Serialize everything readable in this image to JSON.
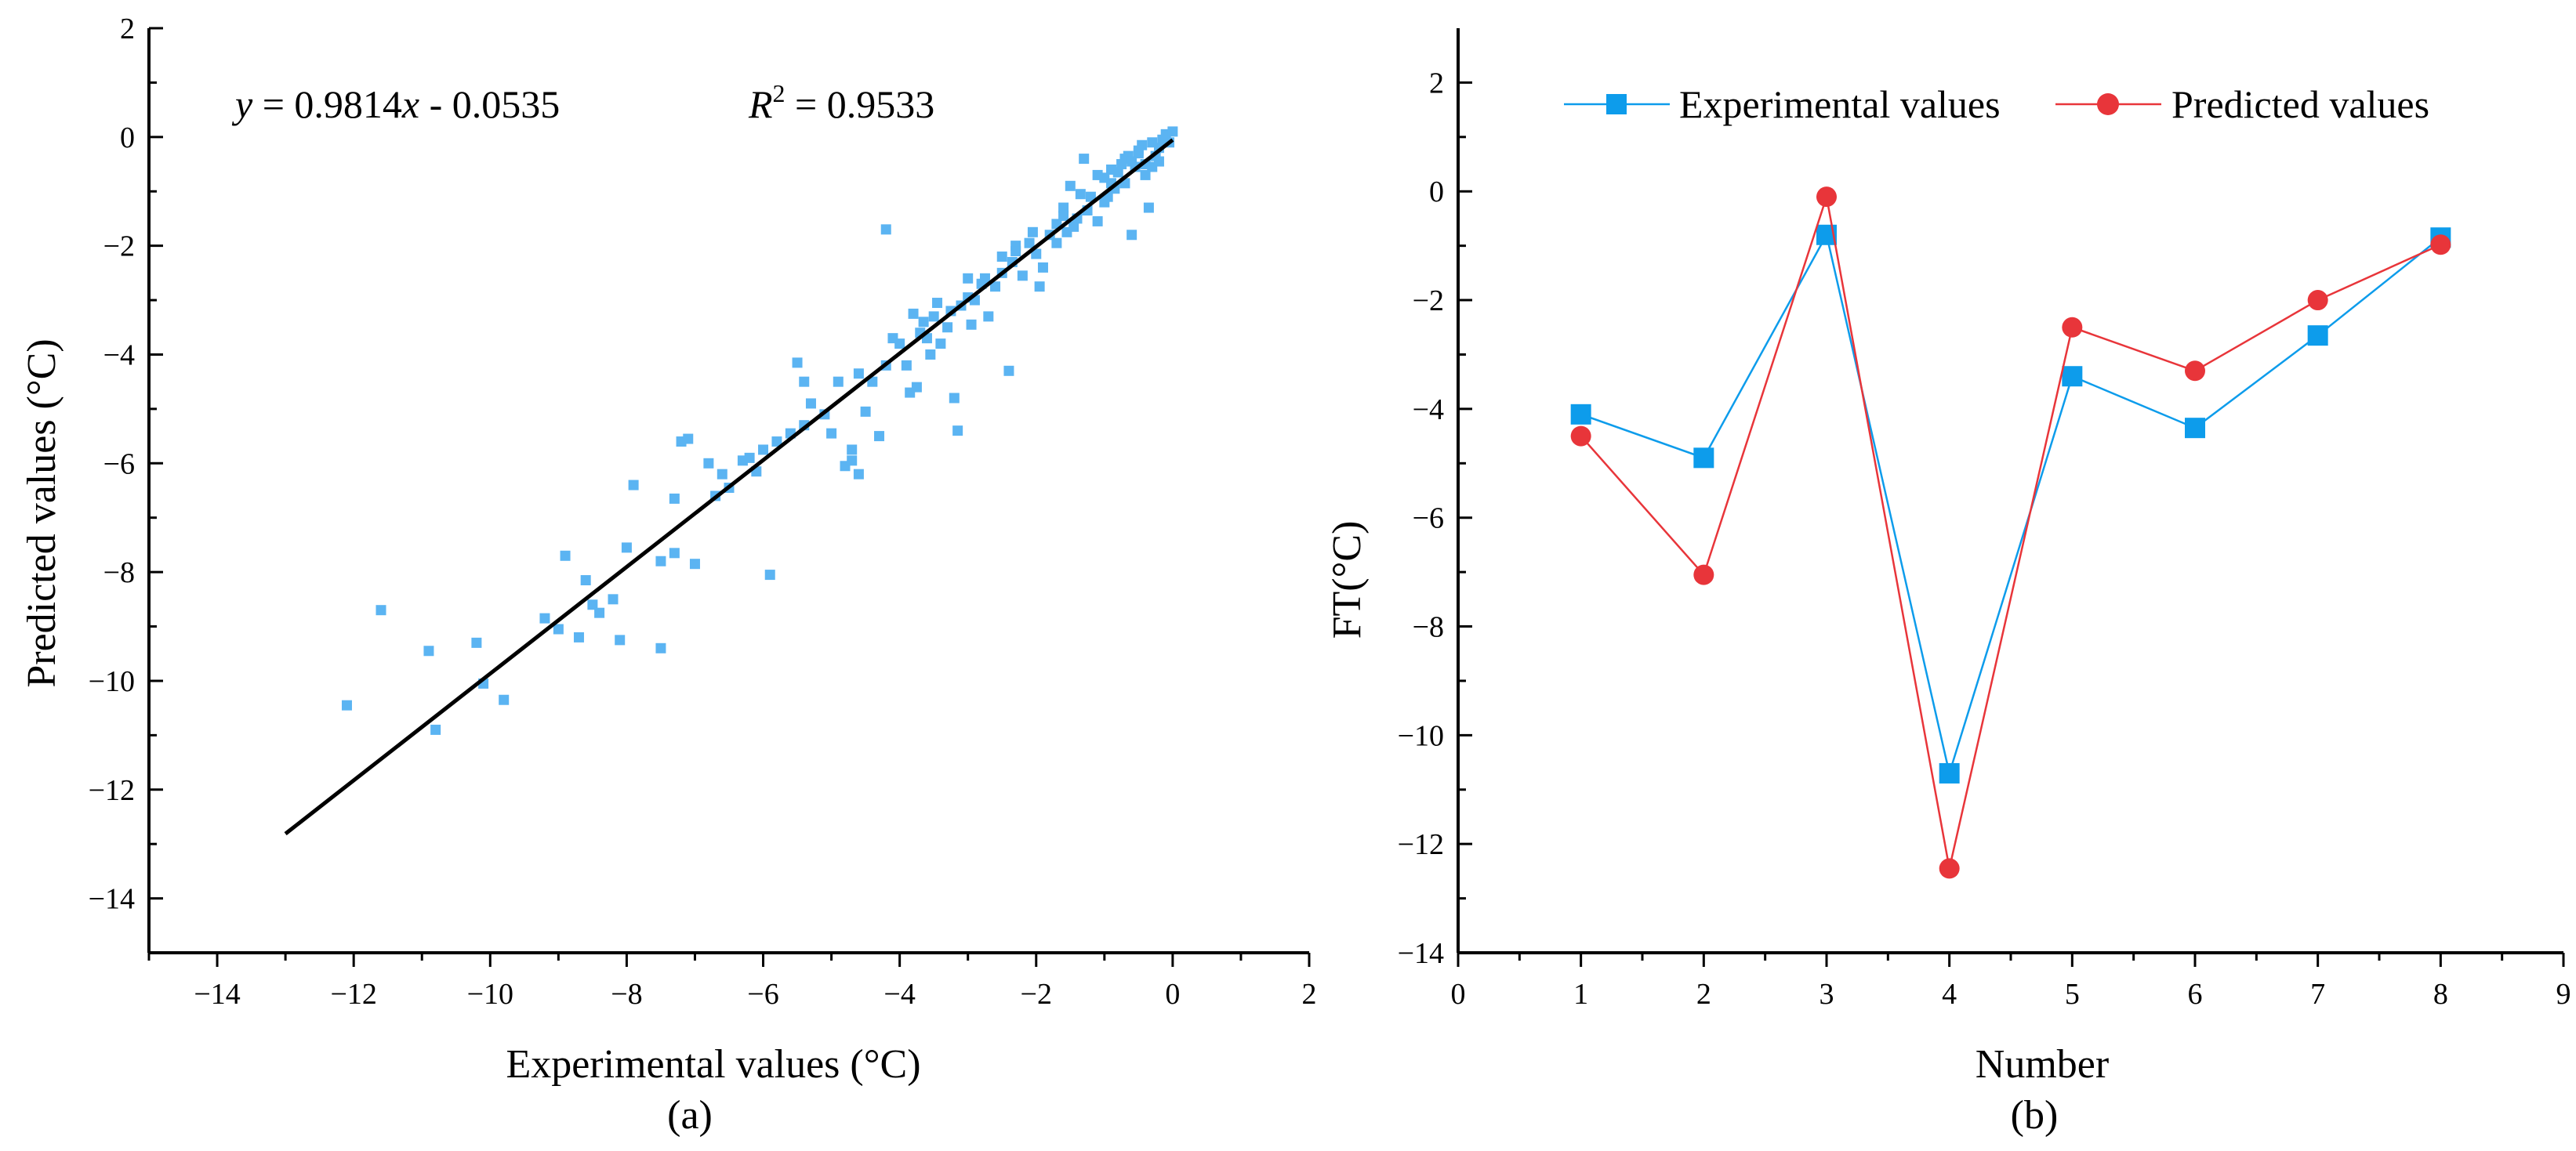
{
  "chart_data": [
    {
      "type": "scatter",
      "panel_label": "(a)",
      "title": "",
      "xlabel": "Experimental values (°C)",
      "ylabel": "Predicted values (°C)",
      "xlim": [
        -15,
        2
      ],
      "ylim": [
        -15,
        2
      ],
      "xticks": [
        -14,
        -12,
        -10,
        -8,
        -6,
        -4,
        -2,
        0,
        2
      ],
      "yticks": [
        -14,
        -12,
        -10,
        -8,
        -6,
        -4,
        -2,
        0,
        2
      ],
      "grid": false,
      "fit": {
        "slope": 0.9814,
        "intercept": -0.0535,
        "r2": 0.9533,
        "x_range": [
          -13,
          0
        ]
      },
      "annotations": {
        "equation": "y = 0.9814x - 0.0535",
        "r2_text": "R2 = 0.9533"
      },
      "marker_color": "#5bb4f2",
      "line_color": "#000000",
      "points": [
        [
          -12.1,
          -10.45
        ],
        [
          -11.6,
          -8.7
        ],
        [
          -10.9,
          -9.45
        ],
        [
          -10.8,
          -10.9
        ],
        [
          -10.2,
          -9.3
        ],
        [
          -10.1,
          -10.05
        ],
        [
          -9.8,
          -10.35
        ],
        [
          -9.2,
          -8.85
        ],
        [
          -9.0,
          -9.05
        ],
        [
          -8.9,
          -7.7
        ],
        [
          -8.7,
          -9.2
        ],
        [
          -8.6,
          -8.15
        ],
        [
          -8.5,
          -8.6
        ],
        [
          -8.4,
          -8.75
        ],
        [
          -8.2,
          -8.5
        ],
        [
          -8.1,
          -9.25
        ],
        [
          -8.0,
          -7.55
        ],
        [
          -7.9,
          -6.4
        ],
        [
          -7.5,
          -7.8
        ],
        [
          -7.5,
          -9.4
        ],
        [
          -7.3,
          -7.65
        ],
        [
          -7.3,
          -6.65
        ],
        [
          -7.2,
          -5.6
        ],
        [
          -7.1,
          -5.55
        ],
        [
          -7.0,
          -7.85
        ],
        [
          -6.8,
          -6.0
        ],
        [
          -6.7,
          -6.6
        ],
        [
          -6.6,
          -6.2
        ],
        [
          -6.5,
          -6.45
        ],
        [
          -6.3,
          -5.95
        ],
        [
          -6.2,
          -5.9
        ],
        [
          -6.1,
          -6.15
        ],
        [
          -6.0,
          -5.75
        ],
        [
          -5.9,
          -8.05
        ],
        [
          -5.8,
          -5.6
        ],
        [
          -5.6,
          -5.45
        ],
        [
          -5.5,
          -4.15
        ],
        [
          -5.4,
          -4.5
        ],
        [
          -5.4,
          -5.3
        ],
        [
          -5.3,
          -4.9
        ],
        [
          -5.1,
          -5.1
        ],
        [
          -5.0,
          -5.45
        ],
        [
          -4.9,
          -4.5
        ],
        [
          -4.8,
          -6.05
        ],
        [
          -4.7,
          -5.95
        ],
        [
          -4.7,
          -5.75
        ],
        [
          -4.6,
          -6.2
        ],
        [
          -4.6,
          -4.35
        ],
        [
          -4.5,
          -5.05
        ],
        [
          -4.4,
          -4.5
        ],
        [
          -4.3,
          -5.5
        ],
        [
          -4.2,
          -4.2
        ],
        [
          -4.2,
          -1.7
        ],
        [
          -4.0,
          -3.8
        ],
        [
          -3.9,
          -4.2
        ],
        [
          -3.85,
          -4.7
        ],
        [
          -3.8,
          -3.25
        ],
        [
          -3.75,
          -4.6
        ],
        [
          -3.7,
          -3.6
        ],
        [
          -3.6,
          -3.7
        ],
        [
          -3.55,
          -4.0
        ],
        [
          -3.5,
          -3.3
        ],
        [
          -3.4,
          -3.8
        ],
        [
          -3.3,
          -3.5
        ],
        [
          -3.2,
          -4.8
        ],
        [
          -3.15,
          -5.4
        ],
        [
          -3.1,
          -3.1
        ],
        [
          -3.0,
          -2.95
        ],
        [
          -2.95,
          -3.45
        ],
        [
          -2.9,
          -3.0
        ],
        [
          -2.8,
          -2.7
        ],
        [
          -2.7,
          -3.3
        ],
        [
          -2.6,
          -2.75
        ],
        [
          -2.5,
          -2.5
        ],
        [
          -2.4,
          -4.3
        ],
        [
          -2.35,
          -2.3
        ],
        [
          -2.3,
          -2.0
        ],
        [
          -2.2,
          -2.55
        ],
        [
          -2.1,
          -1.95
        ],
        [
          -2.0,
          -2.15
        ],
        [
          -1.95,
          -2.75
        ],
        [
          -1.9,
          -2.4
        ],
        [
          -1.8,
          -1.8
        ],
        [
          -1.7,
          -1.95
        ],
        [
          -1.6,
          -1.3
        ],
        [
          -1.55,
          -1.75
        ],
        [
          -1.5,
          -0.9
        ],
        [
          -1.4,
          -1.5
        ],
        [
          -1.3,
          -0.4
        ],
        [
          -1.25,
          -1.35
        ],
        [
          -1.2,
          -1.1
        ],
        [
          -1.1,
          -1.55
        ],
        [
          -1.0,
          -0.75
        ],
        [
          -0.95,
          -1.1
        ],
        [
          -0.9,
          -0.6
        ],
        [
          -0.85,
          -0.95
        ],
        [
          -0.8,
          -0.65
        ],
        [
          -0.75,
          -0.5
        ],
        [
          -0.7,
          -0.85
        ],
        [
          -0.65,
          -0.35
        ],
        [
          -0.6,
          -1.8
        ],
        [
          -0.55,
          -0.55
        ],
        [
          -0.5,
          -0.3
        ],
        [
          -0.45,
          -0.15
        ],
        [
          -0.4,
          -0.5
        ],
        [
          -0.35,
          -1.3
        ],
        [
          -0.3,
          -0.1
        ],
        [
          -0.25,
          -0.35
        ],
        [
          -0.2,
          -0.2
        ],
        [
          -0.15,
          -0.05
        ],
        [
          -0.1,
          0.05
        ],
        [
          -0.05,
          -0.1
        ],
        [
          0.0,
          0.1
        ],
        [
          -0.3,
          -0.55
        ],
        [
          -0.5,
          -0.25
        ],
        [
          -0.9,
          -0.85
        ],
        [
          -1.1,
          -0.7
        ],
        [
          -1.35,
          -1.05
        ],
        [
          -1.6,
          -1.45
        ],
        [
          -2.5,
          -2.2
        ],
        [
          -2.75,
          -2.6
        ],
        [
          -3.0,
          -2.6
        ],
        [
          -3.25,
          -3.2
        ],
        [
          -3.45,
          -3.05
        ],
        [
          -3.65,
          -3.4
        ],
        [
          -4.1,
          -3.7
        ],
        [
          -0.7,
          -0.4
        ],
        [
          -0.4,
          -0.7
        ],
        [
          -0.2,
          -0.45
        ],
        [
          -1.0,
          -1.2
        ],
        [
          -1.7,
          -1.6
        ],
        [
          -2.05,
          -1.75
        ],
        [
          -2.3,
          -2.1
        ],
        [
          -1.45,
          -1.65
        ],
        [
          -0.6,
          -0.45
        ]
      ]
    },
    {
      "type": "line",
      "panel_label": "(b)",
      "title": "",
      "xlabel": "Number",
      "ylabel": "FT(°C)",
      "xlim": [
        0,
        9
      ],
      "ylim": [
        -14,
        3
      ],
      "xticks": [
        0,
        1,
        2,
        3,
        4,
        5,
        6,
        7,
        8,
        9
      ],
      "yticks": [
        -14,
        -12,
        -10,
        -8,
        -6,
        -4,
        -2,
        0,
        2
      ],
      "grid": false,
      "legend_position": "top",
      "x": [
        1,
        2,
        3,
        4,
        5,
        6,
        7,
        8
      ],
      "series": [
        {
          "name": "Experimental values",
          "color": "#0d9ceb",
          "marker": "square",
          "values": [
            -4.1,
            -4.9,
            -0.8,
            -10.7,
            -3.4,
            -4.35,
            -2.65,
            -0.85
          ]
        },
        {
          "name": "Predicted values",
          "color": "#e8353a",
          "marker": "circle",
          "values": [
            -4.5,
            -7.05,
            -0.1,
            -12.45,
            -2.5,
            -3.3,
            -2.0,
            -0.98
          ]
        }
      ]
    }
  ]
}
